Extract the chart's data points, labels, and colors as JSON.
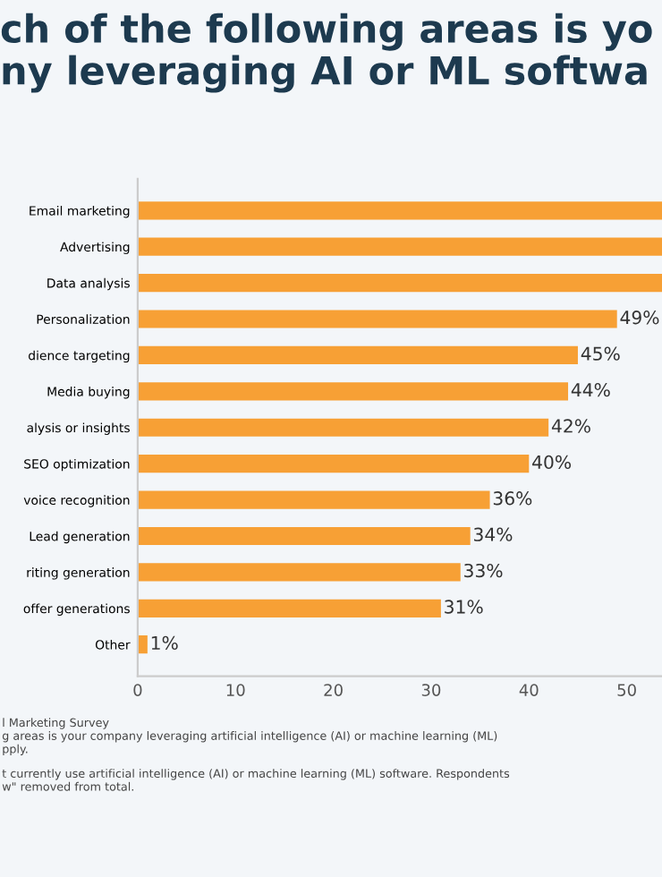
{
  "chart_data": {
    "type": "bar",
    "orientation": "horizontal",
    "title": "ch of the following areas is yo\nny leveraging AI or ML softwa",
    "categories": [
      "Email marketing",
      "Advertising",
      "Data analysis",
      "Personalization",
      "dience targeting",
      "Media buying",
      "alysis or insights",
      "SEO optimization",
      "voice recognition",
      "Lead generation",
      "riting generation",
      "offer generations",
      "Other"
    ],
    "values": [
      53.6,
      53.6,
      53.6,
      49,
      45,
      44,
      42,
      40,
      36,
      34,
      33,
      31,
      1
    ],
    "value_labels": [
      null,
      null,
      null,
      "49%",
      "45%",
      "44%",
      "42%",
      "40%",
      "36%",
      "34%",
      "33%",
      "31%",
      "1%"
    ],
    "color": "#f7a035",
    "xlim": [
      0,
      53.6
    ],
    "xticks": [
      0,
      10,
      20,
      30,
      40,
      50
    ],
    "grid": false,
    "legend": false,
    "annotations": [
      "l Marketing Survey",
      "g areas is your company leveraging artificial intelligence (AI) or machine learning (ML)",
      "pply.",
      "t currently use artificial intelligence (AI) or machine learning (ML) software. Respondents",
      "w\" removed from total."
    ]
  }
}
